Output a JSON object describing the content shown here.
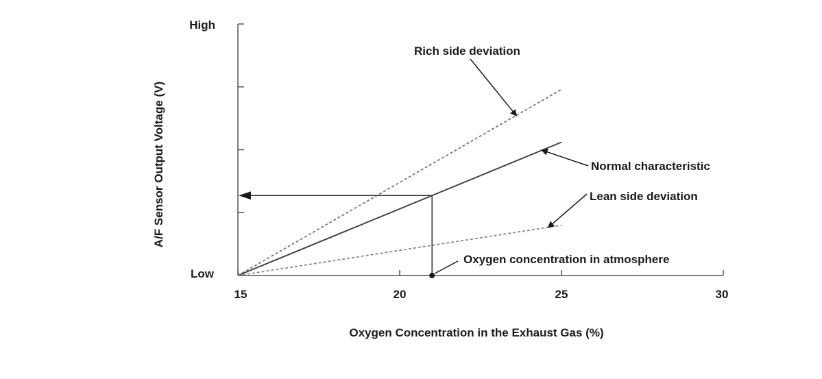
{
  "chart_data": {
    "type": "line",
    "xlabel": "Oxygen Concentration in the Exhaust Gas (%)",
    "ylabel": "A/F Sensor Output Voltage (V)",
    "xlim": [
      15,
      30
    ],
    "x_ticks": [
      15,
      20,
      25,
      30
    ],
    "y_qualitative_labels": {
      "low": "Low",
      "high": "High"
    },
    "ylim": [
      0,
      1
    ],
    "series": [
      {
        "name": "Rich side deviation",
        "style": "dashed",
        "color": "#777777",
        "points": [
          [
            15,
            0
          ],
          [
            25,
            0.74
          ]
        ]
      },
      {
        "name": "Normal characteristic",
        "style": "solid",
        "color": "#444444",
        "points": [
          [
            15,
            0
          ],
          [
            25,
            0.53
          ]
        ]
      },
      {
        "name": "Lean side deviation",
        "style": "dashed",
        "color": "#888888",
        "points": [
          [
            15,
            0
          ],
          [
            25,
            0.2
          ]
        ]
      }
    ],
    "annotations": [
      {
        "text": "Rich side deviation",
        "target_series": 0,
        "target_x": 23.6
      },
      {
        "text": "Normal characteristic",
        "target_series": 1,
        "target_x": 24.4
      },
      {
        "text": "Lean side deviation",
        "target_series": 2,
        "target_x": 24.6
      },
      {
        "text": "Oxygen concentration in atmosphere",
        "marker_x": 21
      }
    ],
    "guide": {
      "x": 21,
      "from_series": 1,
      "arrow_to": "y_axis"
    }
  }
}
